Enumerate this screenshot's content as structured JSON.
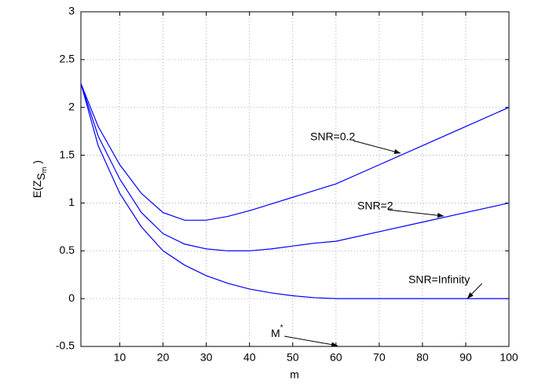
{
  "chart_data": {
    "type": "line",
    "xlabel": "m",
    "ylabel": {
      "main": "E(Z",
      "sub": "S",
      "subsub": "m",
      "close": ")"
    },
    "x": [
      1,
      5,
      10,
      15,
      20,
      25,
      30,
      35,
      40,
      45,
      50,
      55,
      60,
      70,
      80,
      90,
      100
    ],
    "series": [
      {
        "name": "SNR=0.2",
        "color": "#0000ff",
        "values": [
          2.25,
          1.8,
          1.4,
          1.1,
          0.9,
          0.82,
          0.82,
          0.86,
          0.92,
          0.99,
          1.06,
          1.13,
          1.2,
          1.4,
          1.6,
          1.8,
          2.0
        ]
      },
      {
        "name": "SNR=2",
        "color": "#0000ff",
        "values": [
          2.25,
          1.7,
          1.25,
          0.9,
          0.68,
          0.57,
          0.52,
          0.5,
          0.5,
          0.52,
          0.55,
          0.58,
          0.6,
          0.7,
          0.8,
          0.9,
          1.0
        ]
      },
      {
        "name": "SNR=Infinity",
        "color": "#0000ff",
        "values": [
          2.25,
          1.6,
          1.1,
          0.75,
          0.5,
          0.35,
          0.24,
          0.16,
          0.1,
          0.06,
          0.03,
          0.01,
          0,
          0,
          0,
          0,
          0
        ]
      }
    ],
    "annotations": [
      {
        "text": "M",
        "sup": "*"
      }
    ],
    "xlim": [
      1,
      100
    ],
    "xticks": [
      10,
      20,
      30,
      40,
      50,
      60,
      70,
      80,
      90,
      100
    ],
    "ylim": [
      -0.5,
      3
    ],
    "yticks": [
      -0.5,
      0,
      0.5,
      1,
      1.5,
      2,
      2.5,
      3
    ],
    "grid": true
  }
}
